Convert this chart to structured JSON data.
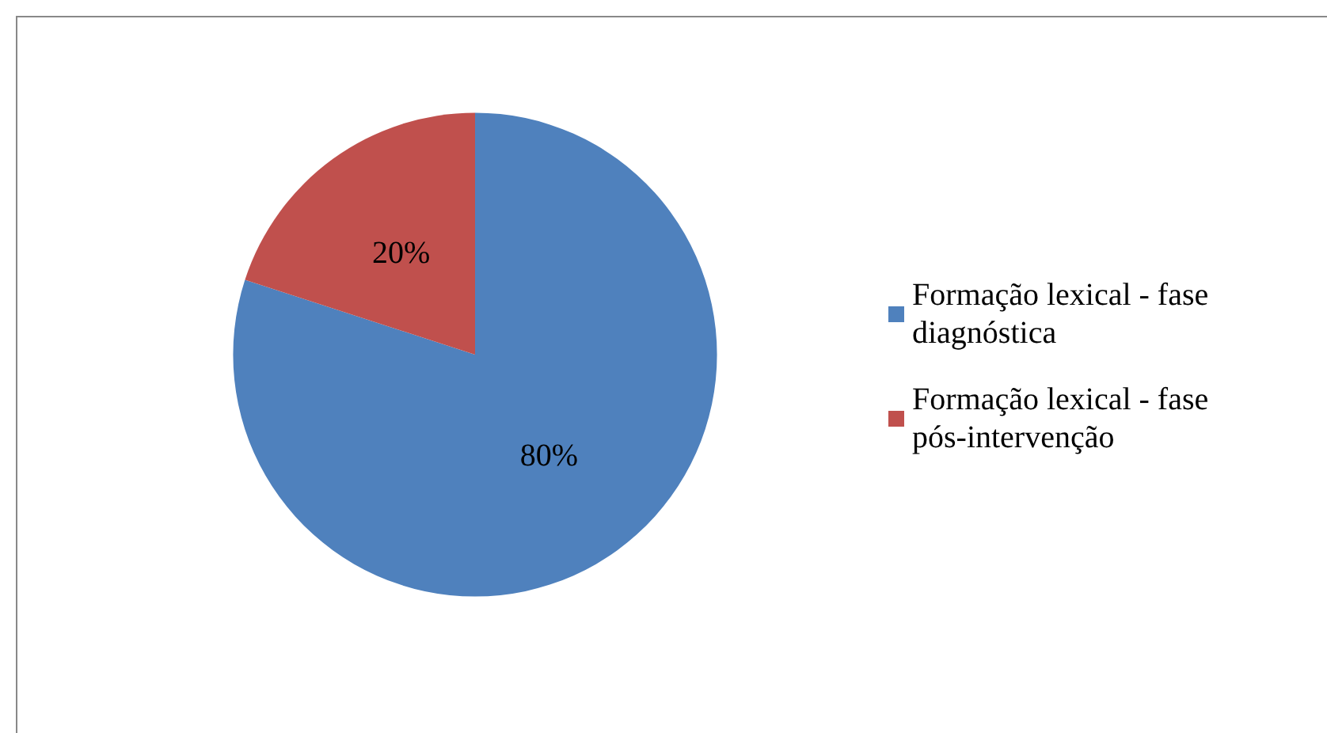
{
  "chart_data": {
    "type": "pie",
    "categories": [
      "Formação lexical - fase diagnóstica",
      "Formação lexical - fase pós-intervenção"
    ],
    "values": [
      80,
      20
    ],
    "colors": [
      "#4f81bd",
      "#c0504d"
    ],
    "value_labels": [
      "80%",
      "20%"
    ],
    "legend": "right"
  }
}
